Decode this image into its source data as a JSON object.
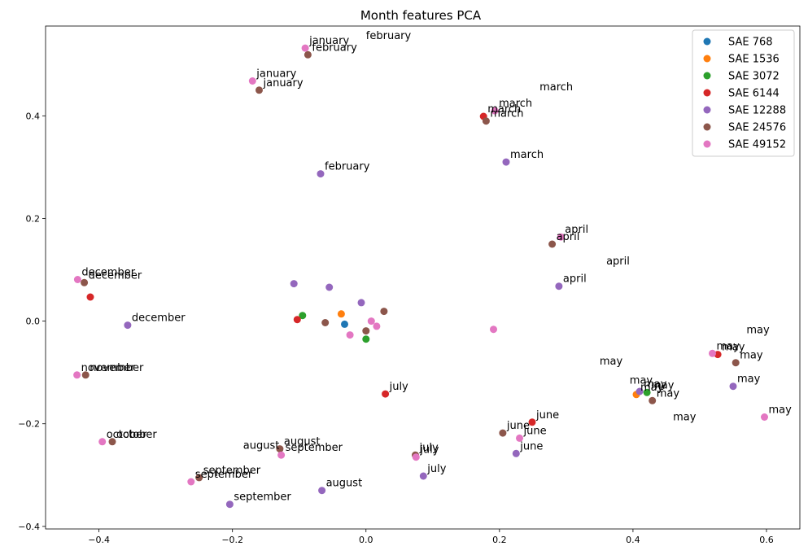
{
  "chart_data": {
    "type": "scatter",
    "title": "Month features PCA",
    "xlabel": "",
    "ylabel": "",
    "xlim": [
      -0.48,
      0.65
    ],
    "ylim": [
      -0.405,
      0.575
    ],
    "xticks": [
      -0.4,
      -0.2,
      0.0,
      0.2,
      0.4,
      0.6
    ],
    "xtick_labels": [
      "−0.4",
      "−0.2",
      "0.0",
      "0.2",
      "0.4",
      "0.6"
    ],
    "yticks": [
      -0.4,
      -0.2,
      0.0,
      0.2,
      0.4
    ],
    "ytick_labels": [
      "−0.4",
      "−0.2",
      "0.0",
      "0.2",
      "0.4"
    ],
    "grid": false,
    "legend_position": "top-right",
    "series": [
      {
        "name": "SAE 768",
        "color": "#1f77b4",
        "points": [
          {
            "x": -0.032,
            "y": -0.006,
            "label": ""
          }
        ]
      },
      {
        "name": "SAE 1536",
        "color": "#ff7f0e",
        "points": [
          {
            "x": -0.037,
            "y": 0.014,
            "label": ""
          },
          {
            "x": 0.405,
            "y": -0.143,
            "label": "may"
          }
        ]
      },
      {
        "name": "SAE 3072",
        "color": "#2ca02c",
        "points": [
          {
            "x": -0.095,
            "y": 0.011,
            "label": ""
          },
          {
            "x": 0.0,
            "y": -0.035,
            "label": ""
          },
          {
            "x": 0.421,
            "y": -0.139,
            "label": "may"
          }
        ]
      },
      {
        "name": "SAE 6144",
        "color": "#d62728",
        "points": [
          {
            "x": -0.413,
            "y": 0.047,
            "label": ""
          },
          {
            "x": -0.103,
            "y": 0.003,
            "label": ""
          },
          {
            "x": 0.029,
            "y": -0.142,
            "label": "july"
          },
          {
            "x": 0.176,
            "y": 0.399,
            "label": "march"
          },
          {
            "x": 0.249,
            "y": -0.197,
            "label": "june"
          },
          {
            "x": 0.527,
            "y": -0.065,
            "label": "may"
          }
        ]
      },
      {
        "name": "SAE 12288",
        "color": "#9467bd",
        "points": [
          {
            "x": -0.108,
            "y": 0.073,
            "label": ""
          },
          {
            "x": -0.055,
            "y": 0.066,
            "label": ""
          },
          {
            "x": -0.007,
            "y": 0.036,
            "label": ""
          },
          {
            "x": -0.357,
            "y": -0.008,
            "label": "december"
          },
          {
            "x": -0.068,
            "y": 0.287,
            "label": "february"
          },
          {
            "x": -0.066,
            "y": -0.33,
            "label": "august"
          },
          {
            "x": -0.204,
            "y": -0.357,
            "label": "september"
          },
          {
            "x": 0.086,
            "y": -0.302,
            "label": "july"
          },
          {
            "x": 0.21,
            "y": 0.31,
            "label": "march"
          },
          {
            "x": 0.225,
            "y": -0.258,
            "label": "june"
          },
          {
            "x": 0.289,
            "y": 0.068,
            "label": "april"
          },
          {
            "x": 0.41,
            "y": -0.137,
            "label": "may"
          },
          {
            "x": 0.55,
            "y": -0.127,
            "label": "may"
          }
        ]
      },
      {
        "name": "SAE 24576",
        "color": "#8c564b",
        "points": [
          {
            "x": -0.061,
            "y": -0.003,
            "label": ""
          },
          {
            "x": 0.0,
            "y": -0.019,
            "label": ""
          },
          {
            "x": 0.027,
            "y": 0.019,
            "label": ""
          },
          {
            "x": -0.087,
            "y": 0.519,
            "label": "february"
          },
          {
            "x": -0.16,
            "y": 0.45,
            "label": "january"
          },
          {
            "x": -0.422,
            "y": 0.075,
            "label": "december"
          },
          {
            "x": -0.42,
            "y": -0.105,
            "label": "november"
          },
          {
            "x": -0.38,
            "y": -0.235,
            "label": "october"
          },
          {
            "x": -0.25,
            "y": -0.305,
            "label": "september"
          },
          {
            "x": -0.129,
            "y": -0.249,
            "label": "august"
          },
          {
            "x": 0.074,
            "y": -0.261,
            "label": "july"
          },
          {
            "x": 0.18,
            "y": 0.39,
            "label": "march"
          },
          {
            "x": 0.205,
            "y": -0.218,
            "label": "june"
          },
          {
            "x": 0.279,
            "y": 0.15,
            "label": "april"
          },
          {
            "x": 0.429,
            "y": -0.155,
            "label": "may"
          },
          {
            "x": 0.554,
            "y": -0.081,
            "label": "may"
          }
        ]
      },
      {
        "name": "SAE 49152",
        "color": "#e377c2",
        "points": [
          {
            "x": 0.008,
            "y": 0.0,
            "label": ""
          },
          {
            "x": 0.016,
            "y": -0.01,
            "label": ""
          },
          {
            "x": -0.024,
            "y": -0.027,
            "label": ""
          },
          {
            "x": 0.191,
            "y": -0.016,
            "label": ""
          },
          {
            "x": -0.091,
            "y": 0.532,
            "label": "january"
          },
          {
            "x": -0.17,
            "y": 0.468,
            "label": "january"
          },
          {
            "x": -0.432,
            "y": 0.081,
            "label": "december"
          },
          {
            "x": -0.433,
            "y": -0.105,
            "label": "november"
          },
          {
            "x": -0.395,
            "y": -0.235,
            "label": "october"
          },
          {
            "x": -0.262,
            "y": -0.313,
            "label": "september"
          },
          {
            "x": -0.127,
            "y": -0.261,
            "label": "september"
          },
          {
            "x": 0.075,
            "y": -0.265,
            "label": "july"
          },
          {
            "x": 0.193,
            "y": 0.41,
            "label": "march"
          },
          {
            "x": 0.23,
            "y": -0.228,
            "label": "june"
          },
          {
            "x": 0.292,
            "y": 0.164,
            "label": "april"
          },
          {
            "x": 0.519,
            "y": -0.063,
            "label": "may"
          },
          {
            "x": 0.597,
            "y": -0.187,
            "label": "may"
          }
        ]
      }
    ],
    "free_labels": [
      {
        "x": 0.0,
        "y": 0.55,
        "text": "february"
      },
      {
        "x": 0.26,
        "y": 0.45,
        "text": "march"
      },
      {
        "x": 0.36,
        "y": 0.11,
        "text": "april"
      },
      {
        "x": 0.57,
        "y": -0.024,
        "text": "may"
      },
      {
        "x": 0.35,
        "y": -0.085,
        "text": "may"
      },
      {
        "x": 0.395,
        "y": -0.122,
        "text": "may"
      },
      {
        "x": 0.46,
        "y": -0.193,
        "text": "may"
      },
      {
        "x": -0.184,
        "y": -0.249,
        "text": "august"
      }
    ]
  }
}
